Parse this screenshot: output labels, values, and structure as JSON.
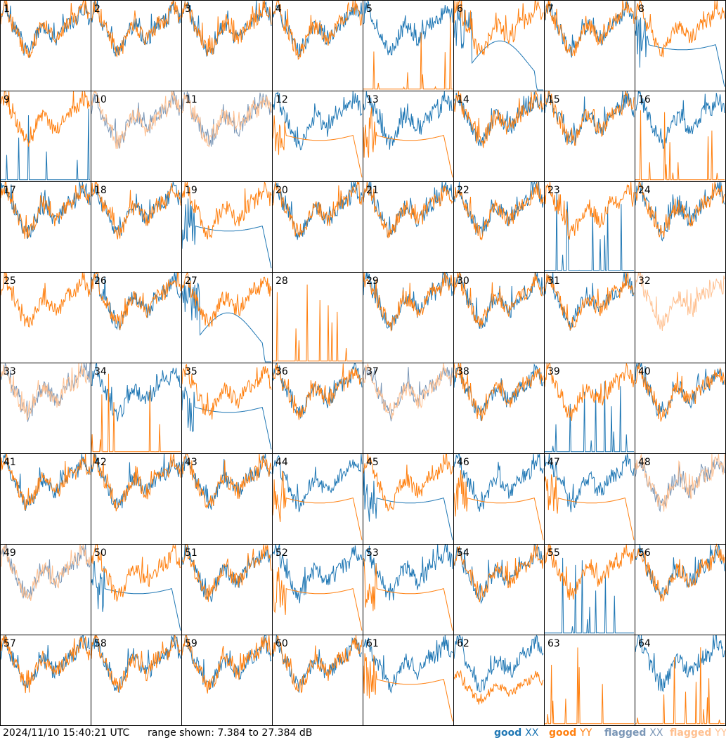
{
  "chart_data": {
    "type": "line",
    "panel_labels": [
      "1",
      "2",
      "3",
      "4",
      "5",
      "6",
      "7",
      "8",
      "9",
      "10",
      "11",
      "12",
      "13",
      "14",
      "15",
      "16",
      "17",
      "18",
      "19",
      "20",
      "21",
      "22",
      "23",
      "24",
      "25",
      "26",
      "27",
      "28",
      "29",
      "30",
      "31",
      "32",
      "33",
      "34",
      "35",
      "36",
      "37",
      "38",
      "39",
      "40",
      "41",
      "42",
      "43",
      "44",
      "45",
      "46",
      "47",
      "48",
      "49",
      "50",
      "51",
      "52",
      "53",
      "54",
      "55",
      "56",
      "57",
      "58",
      "59",
      "60",
      "61",
      "62",
      "63",
      "64"
    ],
    "ylim": [
      7.384,
      27.384
    ],
    "grid": false,
    "colors": {
      "good_xx": "#1f77b4",
      "good_yy": "#ff7f0e",
      "flagged_xx": "#7a96b6",
      "flagged_yy": "#ffc090"
    },
    "panel_types": [
      "both_a",
      "both_a",
      "both_a",
      "both_a",
      "xx_only",
      "yy_high_xx_dip",
      "both_a",
      "yy_high_xx_drop",
      "yy_only_xx_spikes",
      "flagged_both",
      "flagged_both",
      "xx_high_yy_drop",
      "xx_high_yy_drop",
      "both_a",
      "both_a",
      "xx_only",
      "both_a",
      "both_a",
      "yy_high_xx_drop",
      "both_a",
      "both_a",
      "both_a",
      "yy_only_xx_spikes",
      "both_a",
      "yy_only",
      "both_a",
      "yy_high_xx_dip",
      "dead",
      "both_a",
      "both_a",
      "both_a",
      "flagged_yy_only",
      "flagged_both",
      "xx_only_yy_spikes",
      "yy_high_xx_drop",
      "both_a",
      "flagged_both",
      "both_a",
      "yy_only_xx_spikes",
      "both_a",
      "both_a",
      "both_a",
      "both_a",
      "xx_high_yy_drop",
      "yy_high_xx_drop",
      "xx_high_yy_drop",
      "xx_high_yy_drop",
      "flagged_both",
      "flagged_both",
      "yy_high_xx_drop",
      "both_a",
      "xx_high_yy_drop",
      "xx_high_yy_drop",
      "both_a",
      "yy_only_xx_spikes",
      "both_a",
      "both_a",
      "both_a",
      "both_a",
      "both_a",
      "xx_high_yy_drop",
      "xx_high_yy_low",
      "dead",
      "xx_only"
    ],
    "series": [
      {
        "name": "good XX"
      },
      {
        "name": "good YY"
      },
      {
        "name": "flagged XX"
      },
      {
        "name": "flagged YY"
      }
    ]
  },
  "footer": {
    "timestamp": "2024/11/10 15:40:21 UTC",
    "range": "range shown: 7.384 to 27.384 dB"
  },
  "legend": [
    {
      "label": "good",
      "sw": "XX",
      "color": "#1f77b4"
    },
    {
      "label": "good",
      "sw": "YY",
      "color": "#ff7f0e"
    },
    {
      "label": "flagged",
      "sw": "XX",
      "color": "#7a96b6"
    },
    {
      "label": "flagged",
      "sw": "YY",
      "color": "#ffc090"
    }
  ]
}
